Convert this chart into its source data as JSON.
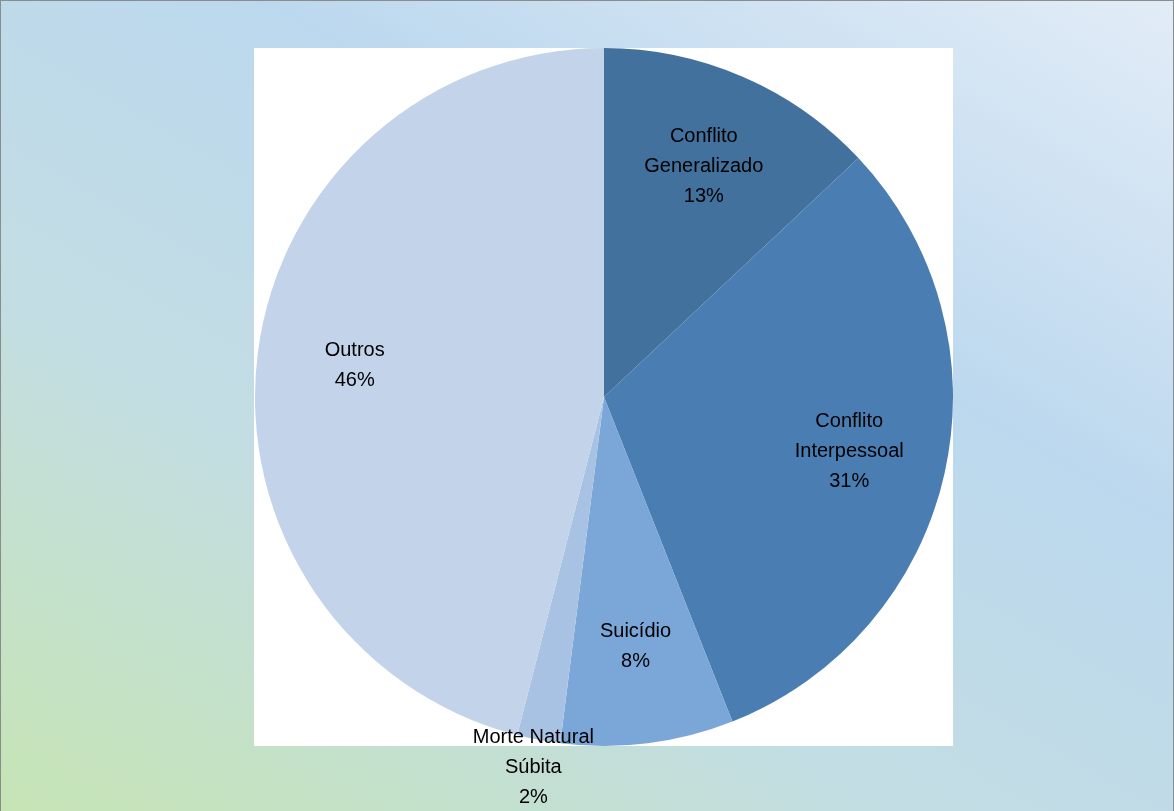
{
  "chart_data": {
    "type": "pie",
    "categories": [
      "Conflito Generalizado",
      "Conflito Interpessoal",
      "Suicídio",
      "Morte Natural Súbita",
      "Outros"
    ],
    "values": [
      13,
      31,
      8,
      2,
      46
    ],
    "colors": [
      "#41719c",
      "#4a7eb3",
      "#7aa6d8",
      "#a8c2e4",
      "#c3d4ea"
    ],
    "value_labels": [
      "13%",
      "31%",
      "8%",
      "2%",
      "46%"
    ],
    "legend": false
  }
}
